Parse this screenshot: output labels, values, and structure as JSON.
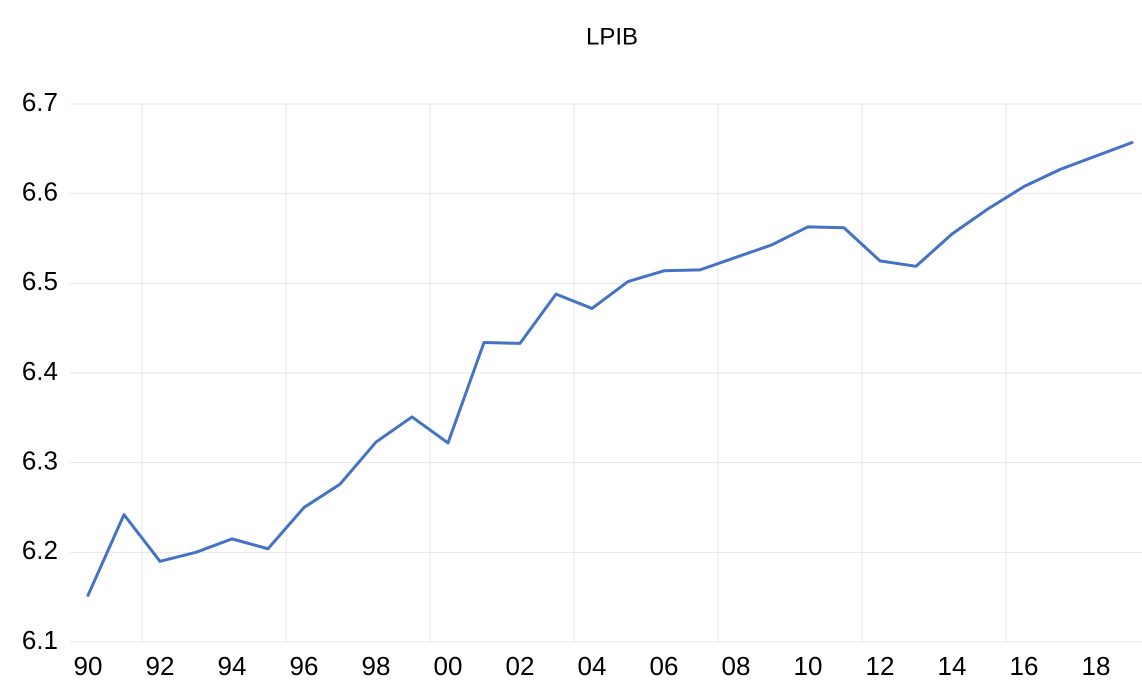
{
  "chart_data": {
    "type": "line",
    "title": "LPIB",
    "categories": [
      "90",
      null,
      "92",
      null,
      "94",
      null,
      "96",
      null,
      "98",
      null,
      "00",
      null,
      "02",
      null,
      "04",
      null,
      "06",
      null,
      "08",
      null,
      "10",
      null,
      "12",
      null,
      "14",
      null,
      "16",
      null,
      "18",
      null
    ],
    "series": [
      {
        "name": "LPIB",
        "color": "#4472c4",
        "values": [
          6.152,
          6.242,
          6.19,
          6.2,
          6.215,
          6.204,
          6.25,
          6.276,
          6.323,
          6.351,
          6.322,
          6.434,
          6.433,
          6.488,
          6.472,
          6.502,
          6.514,
          6.515,
          6.529,
          6.543,
          6.563,
          6.562,
          6.525,
          6.519,
          6.555,
          6.583,
          6.608,
          6.627,
          6.642,
          6.657
        ]
      }
    ],
    "ylim": [
      6.1,
      6.7
    ],
    "yticks": [
      6.1,
      6.2,
      6.3,
      6.4,
      6.5,
      6.6,
      6.7
    ],
    "grid": true
  }
}
